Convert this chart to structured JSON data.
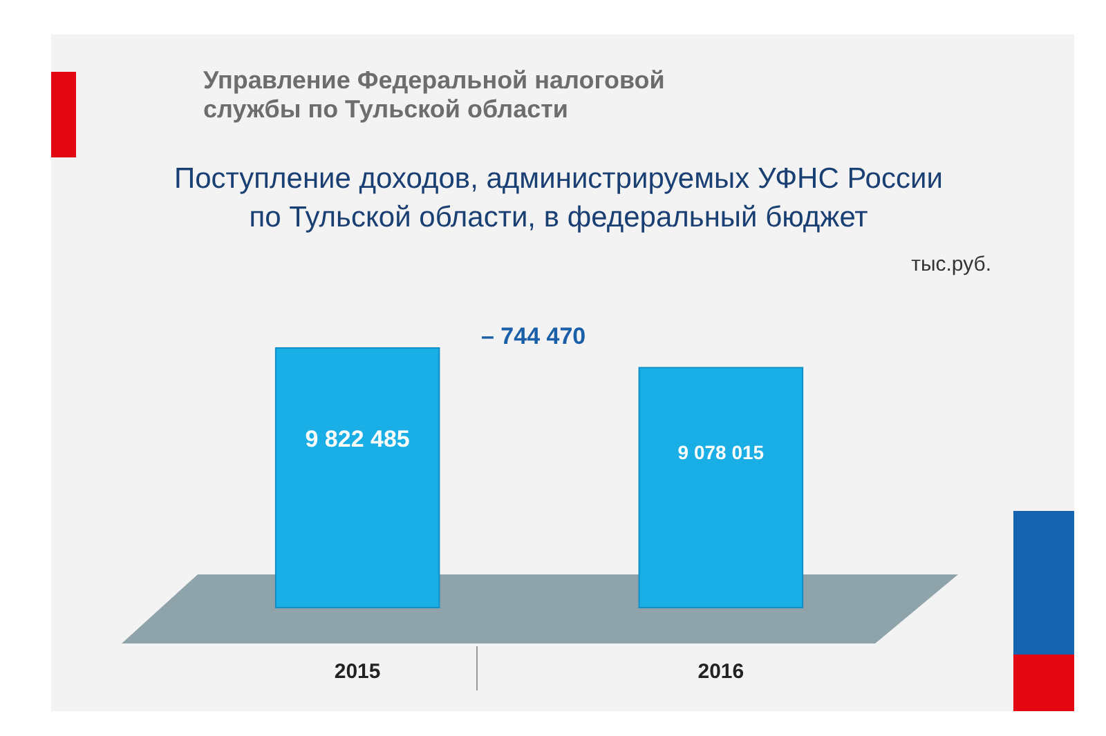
{
  "chart_data": {
    "type": "bar",
    "title": "Поступление доходов, администрируемых УФНС России по Тульской области, в федеральный бюджет",
    "subtitle": "Управление Федеральной налоговой службы по Тульской области",
    "categories": [
      "2015",
      "2016"
    ],
    "values": [
      9822485,
      9078015
    ],
    "value_labels": [
      "9 822 485",
      "9 078 015"
    ],
    "color": "#1aaee6",
    "annotations": [
      "– 744 470",
      "тыс.руб."
    ]
  }
}
